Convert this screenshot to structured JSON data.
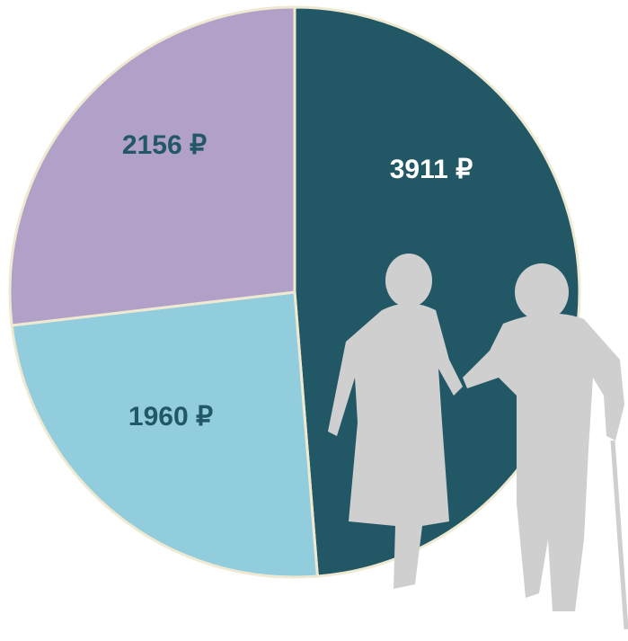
{
  "chart_data": {
    "type": "pie",
    "values": [
      3911,
      1960,
      2156
    ],
    "value_labels": [
      "3911 ₽",
      "1960 ₽",
      "2156 ₽"
    ],
    "colors": [
      "#225866",
      "#92cddd",
      "#b1a0c7"
    ],
    "label_colors": [
      "#ffffff",
      "#225866",
      "#225866"
    ]
  }
}
